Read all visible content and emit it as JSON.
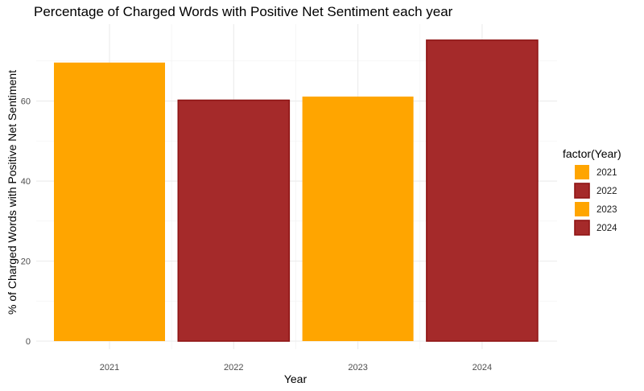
{
  "chart_data": {
    "type": "bar",
    "title": "Percentage of Charged Words with Positive Net Sentiment each year",
    "xlabel": "Year",
    "ylabel": "% of Charged Words with Positive Net Sentiment",
    "categories": [
      "2021",
      "2022",
      "2023",
      "2024"
    ],
    "values": [
      69.6,
      60.2,
      61.1,
      75.2
    ],
    "fill_colors": [
      "#FFA500",
      "#A52A2A",
      "#FFA500",
      "#A52A2A"
    ],
    "ylim": [
      0,
      78.4
    ],
    "yticks": [
      0,
      20,
      40,
      60
    ],
    "grid": true,
    "legend": {
      "title": "factor(Year)",
      "placement": "right",
      "entries": [
        {
          "label": "2021",
          "color": "#FFA500"
        },
        {
          "label": "2022",
          "color": "#A52A2A"
        },
        {
          "label": "2023",
          "color": "#FFA500"
        },
        {
          "label": "2024",
          "color": "#A52A2A"
        }
      ]
    }
  }
}
